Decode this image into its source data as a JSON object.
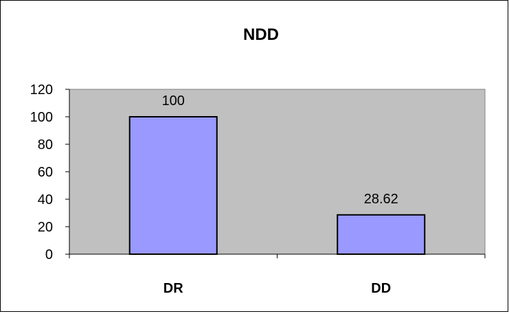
{
  "chart_data": {
    "type": "bar",
    "title": "NDD",
    "categories": [
      "DR",
      "DD"
    ],
    "values": [
      100,
      28.62
    ],
    "data_labels": [
      "100",
      "28.62"
    ],
    "xlabel": "",
    "ylabel": "",
    "ylim": [
      0,
      120
    ],
    "yticks": [
      0,
      20,
      40,
      60,
      80,
      100,
      120
    ],
    "grid": false,
    "legend": "none"
  },
  "colors": {
    "plot_background": "#c0c0c0",
    "bar_fill": "#9999ff",
    "bar_stroke": "#000000",
    "frame_stroke": "#000000",
    "page_background": "#ffffff"
  }
}
